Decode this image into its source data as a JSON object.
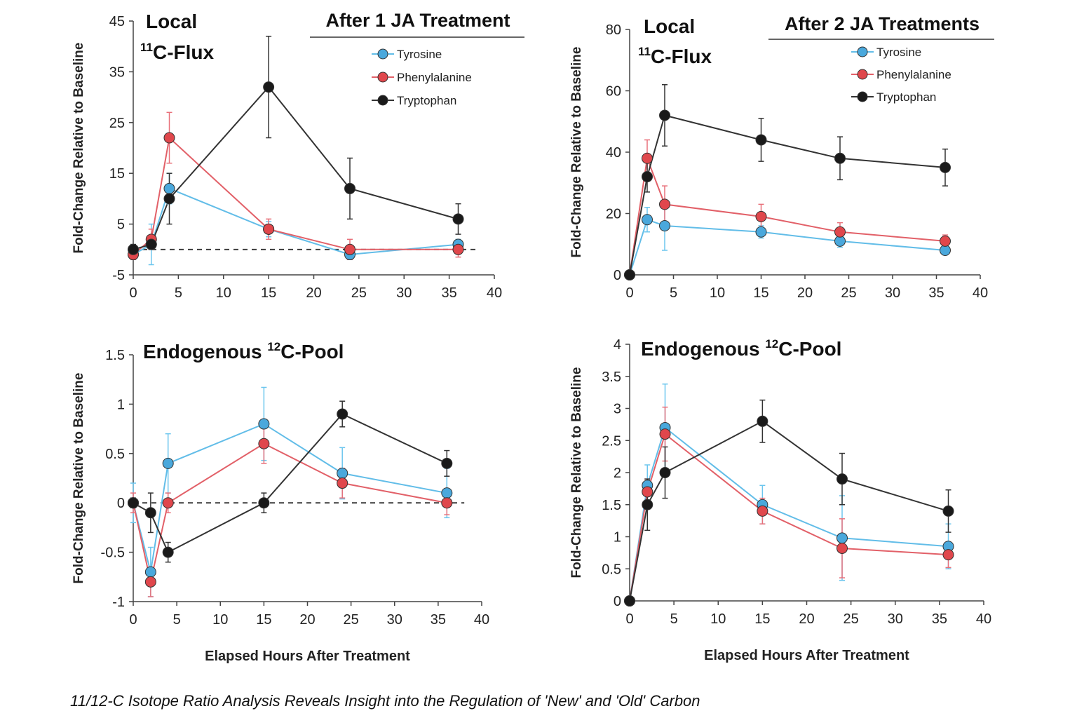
{
  "caption": "11/12-C Isotope Ratio Analysis Reveals Insight into the Regulation of 'New' and 'Old' Carbon",
  "colors": {
    "Tyrosine": "#4aa8dc",
    "Phenylalanine": "#e0474c",
    "Tryptophan": "#1a1a1a",
    "line_tyrosine": "#62bde8",
    "line_phenylalanine": "#e26068",
    "line_tryptophan": "#333333"
  },
  "chart_data": [
    {
      "type": "line",
      "title": "Local",
      "subtitle_sup": "11",
      "subtitle": "C-Flux",
      "header": "After 1 JA Treatment",
      "ylabel": "Fold-Change Relative to Baseline",
      "xlabel": "",
      "xlim": [
        0,
        40
      ],
      "ylim": [
        -5,
        45
      ],
      "xticks": [
        0,
        5,
        10,
        15,
        20,
        25,
        30,
        35,
        40
      ],
      "yticks": [
        -5,
        5,
        15,
        25,
        35,
        45
      ],
      "baseline": 0,
      "legend": [
        "Tyrosine",
        "Phenylalanine",
        "Tryptophan"
      ],
      "series": [
        {
          "name": "Tyrosine",
          "x": [
            0,
            2,
            4,
            15,
            24,
            36
          ],
          "values": [
            -1,
            1,
            12,
            4,
            -1,
            1
          ],
          "err": [
            1,
            4,
            3,
            1.5,
            1,
            1
          ]
        },
        {
          "name": "Phenylalanine",
          "x": [
            0,
            2,
            4,
            15,
            24,
            36
          ],
          "values": [
            -1,
            2,
            22,
            4,
            0,
            0
          ],
          "err": [
            1,
            2,
            5,
            2,
            2,
            1.5
          ]
        },
        {
          "name": "Tryptophan",
          "x": [
            0,
            2,
            4,
            15,
            24,
            36
          ],
          "values": [
            0,
            1,
            10,
            32,
            12,
            6
          ],
          "err": [
            1,
            1,
            5,
            10,
            6,
            3
          ]
        }
      ]
    },
    {
      "type": "line",
      "title": "Local",
      "subtitle_sup": "11",
      "subtitle": "C-Flux",
      "header": "After 2 JA Treatments",
      "ylabel": "Fold-Change Relative to Baseline",
      "xlabel": "",
      "xlim": [
        0,
        40
      ],
      "ylim": [
        0,
        80
      ],
      "xticks": [
        0,
        5,
        10,
        15,
        20,
        25,
        30,
        35,
        40
      ],
      "yticks": [
        0,
        20,
        40,
        60,
        80
      ],
      "baseline": null,
      "legend": [
        "Tyrosine",
        "Phenylalanine",
        "Tryptophan"
      ],
      "series": [
        {
          "name": "Tyrosine",
          "x": [
            0,
            2,
            4,
            15,
            24,
            36
          ],
          "values": [
            0,
            18,
            16,
            14,
            11,
            8
          ],
          "err": [
            0,
            4,
            8,
            2,
            2,
            1.5
          ]
        },
        {
          "name": "Phenylalanine",
          "x": [
            0,
            2,
            4,
            15,
            24,
            36
          ],
          "values": [
            0,
            38,
            23,
            19,
            14,
            11
          ],
          "err": [
            0,
            6,
            6,
            4,
            3,
            2
          ]
        },
        {
          "name": "Tryptophan",
          "x": [
            0,
            2,
            4,
            15,
            24,
            36
          ],
          "values": [
            0,
            32,
            52,
            44,
            38,
            35
          ],
          "err": [
            0,
            5,
            10,
            7,
            7,
            6
          ]
        }
      ]
    },
    {
      "type": "line",
      "title": "Endogenous ",
      "subtitle_sup": "12",
      "subtitle": "C-Pool",
      "header": "",
      "ylabel": "Fold-Change Relative to Baseline",
      "xlabel": "Elapsed Hours After Treatment",
      "xlim": [
        0,
        40
      ],
      "ylim": [
        -1,
        1.5
      ],
      "xticks": [
        0,
        5,
        10,
        15,
        20,
        25,
        30,
        35,
        40
      ],
      "yticks": [
        -1,
        -0.5,
        0,
        0.5,
        1,
        1.5
      ],
      "baseline": 0,
      "legend": [],
      "series": [
        {
          "name": "Tyrosine",
          "x": [
            0,
            2,
            4,
            15,
            24,
            36
          ],
          "values": [
            0,
            -0.7,
            0.4,
            0.8,
            0.3,
            0.1
          ],
          "err": [
            0.2,
            0.25,
            0.3,
            0.37,
            0.26,
            0.25
          ]
        },
        {
          "name": "Phenylalanine",
          "x": [
            0,
            2,
            4,
            15,
            24,
            36
          ],
          "values": [
            0,
            -0.8,
            0,
            0.6,
            0.2,
            0
          ],
          "err": [
            0.1,
            0.15,
            0.1,
            0.2,
            0.15,
            0.12
          ]
        },
        {
          "name": "Tryptophan",
          "x": [
            0,
            2,
            4,
            15,
            24,
            36
          ],
          "values": [
            0,
            -0.1,
            -0.5,
            0,
            0.9,
            0.4
          ],
          "err": [
            0.05,
            0.2,
            0.1,
            0.1,
            0.13,
            0.13
          ]
        }
      ]
    },
    {
      "type": "line",
      "title": "Endogenous ",
      "subtitle_sup": "12",
      "subtitle": "C-Pool",
      "header": "",
      "ylabel": "Fold-Change Relative to Baseline",
      "xlabel": "Elapsed Hours After Treatment",
      "xlim": [
        0,
        40
      ],
      "ylim": [
        0,
        4
      ],
      "xticks": [
        0,
        5,
        10,
        15,
        20,
        25,
        30,
        35,
        40
      ],
      "ytick_labels": [
        "0",
        "0.5",
        "1",
        "1.5",
        "2",
        "2.5",
        "3",
        "3.5",
        "4"
      ],
      "yticks": [
        0,
        0.5,
        1,
        1.5,
        2,
        2.5,
        3,
        3.5,
        4
      ],
      "baseline": null,
      "legend": [],
      "series": [
        {
          "name": "Tyrosine",
          "x": [
            0,
            2,
            4,
            15,
            24,
            36
          ],
          "values": [
            0,
            1.8,
            2.7,
            1.5,
            0.98,
            0.85
          ],
          "err": [
            0,
            0.32,
            0.68,
            0.3,
            0.66,
            0.35
          ]
        },
        {
          "name": "Phenylalanine",
          "x": [
            0,
            2,
            4,
            15,
            24,
            36
          ],
          "values": [
            0,
            1.7,
            2.6,
            1.4,
            0.82,
            0.72
          ],
          "err": [
            0,
            0.2,
            0.42,
            0.2,
            0.46,
            0.2
          ]
        },
        {
          "name": "Tryptophan",
          "x": [
            0,
            2,
            4,
            15,
            24,
            36
          ],
          "values": [
            0,
            1.5,
            2.0,
            2.8,
            1.9,
            1.4
          ],
          "err": [
            0,
            0.4,
            0.4,
            0.33,
            0.4,
            0.33
          ]
        }
      ]
    }
  ]
}
